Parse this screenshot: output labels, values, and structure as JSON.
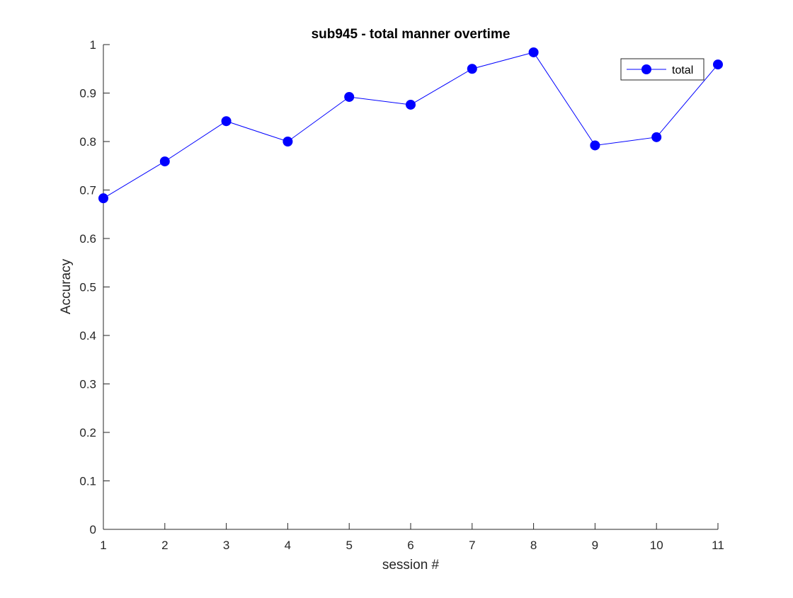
{
  "chart_data": {
    "type": "line",
    "title": "sub945 - total manner overtime",
    "xlabel": "session #",
    "ylabel": "Accuracy",
    "x": [
      1,
      2,
      3,
      4,
      5,
      6,
      7,
      8,
      9,
      10,
      11
    ],
    "xlim": [
      1,
      11
    ],
    "ylim": [
      0,
      1
    ],
    "xticks": [
      "1",
      "2",
      "3",
      "4",
      "5",
      "6",
      "7",
      "8",
      "9",
      "10",
      "11"
    ],
    "yticks": [
      "0",
      "0.1",
      "0.2",
      "0.3",
      "0.4",
      "0.5",
      "0.6",
      "0.7",
      "0.8",
      "0.9",
      "1"
    ],
    "grid": false,
    "legend_position": "top-right",
    "series": [
      {
        "name": "total",
        "color": "#0000ff",
        "marker": "circle",
        "values": [
          0.683,
          0.759,
          0.842,
          0.8,
          0.892,
          0.876,
          0.95,
          0.984,
          0.792,
          0.809,
          0.959
        ]
      }
    ]
  }
}
